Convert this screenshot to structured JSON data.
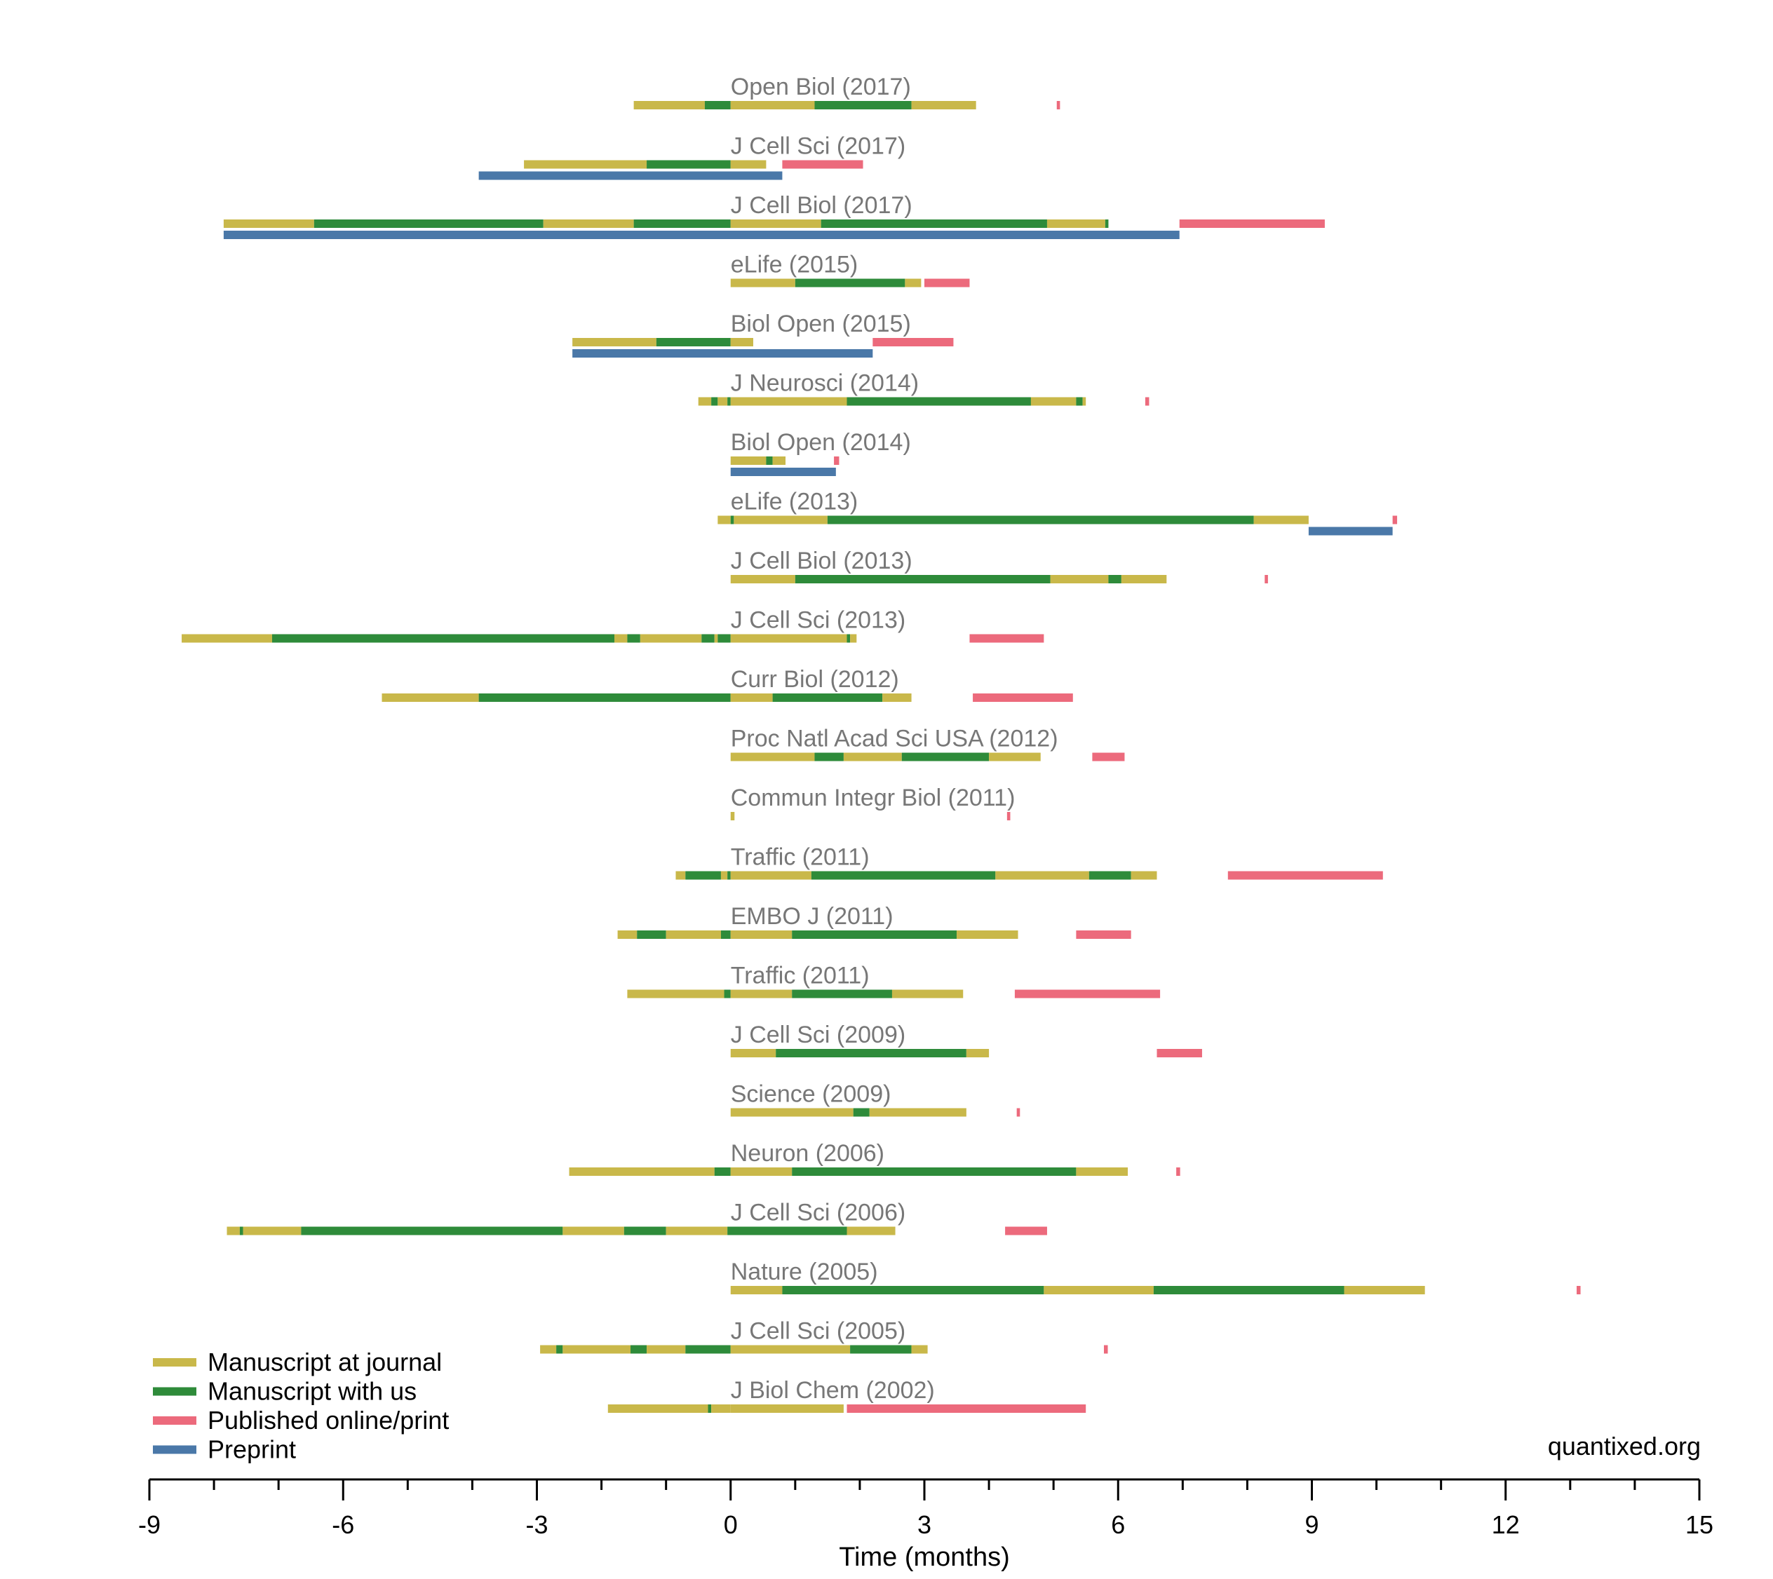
{
  "chart_data": {
    "type": "timeline",
    "xlabel": "Time (months)",
    "xlim": [
      -9,
      15
    ],
    "x_ticks": [
      -9,
      -6,
      -3,
      0,
      3,
      6,
      9,
      12,
      15
    ],
    "x_tick_labels": [
      "-9",
      "-6",
      "-3",
      "0",
      "3",
      "6",
      "9",
      "12",
      "15"
    ],
    "minor_tick_step": 1,
    "grid": false,
    "legend_position": "bottom-left",
    "watermark": "quantixed.org",
    "colors": {
      "journal": "#c9b84a",
      "us": "#2e8b3a",
      "published": "#ec6a7c",
      "preprint": "#4a78a8"
    },
    "legend": [
      {
        "key": "journal",
        "label": "Manuscript at journal"
      },
      {
        "key": "us",
        "label": "Manuscript with us"
      },
      {
        "key": "published",
        "label": "Published online/print"
      },
      {
        "key": "preprint",
        "label": "Preprint"
      }
    ],
    "papers": [
      {
        "label": "Open Biol (2017)",
        "timeline": [
          [
            -1.5,
            -0.4,
            "journal"
          ],
          [
            -0.4,
            0,
            "us"
          ],
          [
            0,
            1.3,
            "journal"
          ],
          [
            1.3,
            2.8,
            "us"
          ],
          [
            2.8,
            3.8,
            "journal"
          ],
          [
            5.05,
            5.1,
            "published"
          ]
        ],
        "preprint": []
      },
      {
        "label": "J Cell Sci (2017)",
        "timeline": [
          [
            -3.2,
            -1.3,
            "journal"
          ],
          [
            -1.3,
            0,
            "us"
          ],
          [
            0,
            0.55,
            "journal"
          ],
          [
            0.8,
            2.05,
            "published"
          ]
        ],
        "preprint": [
          [
            -3.9,
            0.8
          ]
        ]
      },
      {
        "label": "J Cell Biol (2017)",
        "timeline": [
          [
            -7.85,
            -6.45,
            "journal"
          ],
          [
            -6.45,
            -2.9,
            "us"
          ],
          [
            -2.9,
            -1.5,
            "journal"
          ],
          [
            -1.5,
            0,
            "us"
          ],
          [
            0,
            1.4,
            "journal"
          ],
          [
            1.4,
            4.9,
            "us"
          ],
          [
            4.9,
            5.8,
            "journal"
          ],
          [
            5.8,
            5.85,
            "us"
          ],
          [
            6.95,
            9.2,
            "published"
          ]
        ],
        "preprint": [
          [
            -7.85,
            6.95
          ]
        ]
      },
      {
        "label": "eLife (2015)",
        "timeline": [
          [
            0,
            1.0,
            "journal"
          ],
          [
            1.0,
            2.7,
            "us"
          ],
          [
            2.7,
            2.95,
            "journal"
          ],
          [
            3.0,
            3.7,
            "published"
          ]
        ],
        "preprint": []
      },
      {
        "label": "Biol Open (2015)",
        "timeline": [
          [
            -2.45,
            -1.15,
            "journal"
          ],
          [
            -1.15,
            0,
            "us"
          ],
          [
            0,
            0.35,
            "journal"
          ],
          [
            2.2,
            3.45,
            "published"
          ]
        ],
        "preprint": [
          [
            -2.45,
            2.2
          ]
        ]
      },
      {
        "label": "J Neurosci (2014)",
        "timeline": [
          [
            -0.5,
            -0.3,
            "journal"
          ],
          [
            -0.3,
            -0.2,
            "us"
          ],
          [
            -0.2,
            -0.05,
            "journal"
          ],
          [
            -0.05,
            0,
            "us"
          ],
          [
            0,
            1.8,
            "journal"
          ],
          [
            1.8,
            4.65,
            "us"
          ],
          [
            4.65,
            5.35,
            "journal"
          ],
          [
            5.35,
            5.45,
            "us"
          ],
          [
            5.45,
            5.5,
            "journal"
          ],
          [
            6.42,
            6.48,
            "published"
          ]
        ],
        "preprint": []
      },
      {
        "label": "Biol Open (2014)",
        "timeline": [
          [
            0,
            0.55,
            "journal"
          ],
          [
            0.55,
            0.65,
            "us"
          ],
          [
            0.65,
            0.85,
            "journal"
          ],
          [
            1.6,
            1.68,
            "published"
          ]
        ],
        "preprint": [
          [
            0,
            1.63
          ]
        ]
      },
      {
        "label": "eLife (2013)",
        "timeline": [
          [
            -0.2,
            0,
            "journal"
          ],
          [
            0,
            0.05,
            "us"
          ],
          [
            0.05,
            1.5,
            "journal"
          ],
          [
            1.5,
            8.1,
            "us"
          ],
          [
            8.1,
            8.95,
            "journal"
          ],
          [
            10.25,
            10.32,
            "published"
          ]
        ],
        "preprint": [
          [
            8.95,
            10.25
          ]
        ]
      },
      {
        "label": "J Cell Biol (2013)",
        "timeline": [
          [
            0,
            1.0,
            "journal"
          ],
          [
            1.0,
            4.95,
            "us"
          ],
          [
            4.95,
            5.85,
            "journal"
          ],
          [
            5.85,
            6.05,
            "us"
          ],
          [
            6.05,
            6.75,
            "journal"
          ],
          [
            8.27,
            8.32,
            "published"
          ]
        ],
        "preprint": []
      },
      {
        "label": "J Cell Sci (2013)",
        "timeline": [
          [
            -8.5,
            -7.1,
            "journal"
          ],
          [
            -7.1,
            -1.8,
            "us"
          ],
          [
            -1.8,
            -1.6,
            "journal"
          ],
          [
            -1.6,
            -1.4,
            "us"
          ],
          [
            -1.4,
            -0.45,
            "journal"
          ],
          [
            -0.45,
            -0.25,
            "us"
          ],
          [
            -0.25,
            -0.2,
            "journal"
          ],
          [
            -0.2,
            0,
            "us"
          ],
          [
            0,
            1.8,
            "journal"
          ],
          [
            1.8,
            1.85,
            "us"
          ],
          [
            1.85,
            1.95,
            "journal"
          ],
          [
            3.7,
            4.85,
            "published"
          ]
        ],
        "preprint": []
      },
      {
        "label": "Curr Biol (2012)",
        "timeline": [
          [
            -5.4,
            -3.9,
            "journal"
          ],
          [
            -3.9,
            0,
            "us"
          ],
          [
            0,
            0.65,
            "journal"
          ],
          [
            0.65,
            2.35,
            "us"
          ],
          [
            2.35,
            2.8,
            "journal"
          ],
          [
            3.75,
            5.3,
            "published"
          ]
        ],
        "preprint": []
      },
      {
        "label": "Proc Natl Acad Sci USA (2012)",
        "timeline": [
          [
            0,
            1.3,
            "journal"
          ],
          [
            1.3,
            1.75,
            "us"
          ],
          [
            1.75,
            2.65,
            "journal"
          ],
          [
            2.65,
            4.0,
            "us"
          ],
          [
            4.0,
            4.8,
            "journal"
          ],
          [
            5.6,
            6.1,
            "published"
          ]
        ],
        "preprint": []
      },
      {
        "label": "Commun Integr Biol (2011)",
        "timeline": [
          [
            0,
            0.06,
            "journal"
          ],
          [
            4.28,
            4.33,
            "published"
          ]
        ],
        "preprint": []
      },
      {
        "label": "Traffic (2011)",
        "timeline": [
          [
            -0.85,
            -0.7,
            "journal"
          ],
          [
            -0.7,
            -0.15,
            "us"
          ],
          [
            -0.15,
            -0.05,
            "journal"
          ],
          [
            -0.05,
            0,
            "us"
          ],
          [
            0,
            1.25,
            "journal"
          ],
          [
            1.25,
            4.1,
            "us"
          ],
          [
            4.1,
            5.55,
            "journal"
          ],
          [
            5.55,
            6.2,
            "us"
          ],
          [
            6.2,
            6.6,
            "journal"
          ],
          [
            7.7,
            10.1,
            "published"
          ]
        ],
        "preprint": []
      },
      {
        "label": "EMBO J (2011)",
        "timeline": [
          [
            -1.75,
            -1.45,
            "journal"
          ],
          [
            -1.45,
            -1.0,
            "us"
          ],
          [
            -1.0,
            -0.15,
            "journal"
          ],
          [
            -0.15,
            0,
            "us"
          ],
          [
            0,
            0.95,
            "journal"
          ],
          [
            0.95,
            3.5,
            "us"
          ],
          [
            3.5,
            4.45,
            "journal"
          ],
          [
            5.35,
            6.2,
            "published"
          ]
        ],
        "preprint": []
      },
      {
        "label": "Traffic (2011)",
        "timeline": [
          [
            -1.6,
            -0.1,
            "journal"
          ],
          [
            -0.1,
            0,
            "us"
          ],
          [
            0,
            0.95,
            "journal"
          ],
          [
            0.95,
            2.5,
            "us"
          ],
          [
            2.5,
            3.6,
            "journal"
          ],
          [
            4.4,
            6.65,
            "published"
          ]
        ],
        "preprint": []
      },
      {
        "label": "J Cell Sci (2009)",
        "timeline": [
          [
            0,
            0.7,
            "journal"
          ],
          [
            0.7,
            3.65,
            "us"
          ],
          [
            3.65,
            4.0,
            "journal"
          ],
          [
            6.6,
            7.3,
            "published"
          ]
        ],
        "preprint": []
      },
      {
        "label": "Science (2009)",
        "timeline": [
          [
            0,
            1.9,
            "journal"
          ],
          [
            1.9,
            2.15,
            "us"
          ],
          [
            2.15,
            3.65,
            "journal"
          ],
          [
            4.43,
            4.48,
            "published"
          ]
        ],
        "preprint": []
      },
      {
        "label": "Neuron (2006)",
        "timeline": [
          [
            -2.5,
            -0.25,
            "journal"
          ],
          [
            -0.25,
            0,
            "us"
          ],
          [
            0,
            0.95,
            "journal"
          ],
          [
            0.95,
            5.35,
            "us"
          ],
          [
            5.35,
            6.15,
            "journal"
          ],
          [
            6.9,
            6.96,
            "published"
          ]
        ],
        "preprint": []
      },
      {
        "label": "J Cell Sci (2006)",
        "timeline": [
          [
            -7.8,
            -7.6,
            "journal"
          ],
          [
            -7.6,
            -7.55,
            "us"
          ],
          [
            -7.55,
            -6.65,
            "journal"
          ],
          [
            -6.65,
            -2.6,
            "us"
          ],
          [
            -2.6,
            -1.65,
            "journal"
          ],
          [
            -1.65,
            -1.0,
            "us"
          ],
          [
            -1.0,
            -0.05,
            "journal"
          ],
          [
            -0.05,
            1.8,
            "us"
          ],
          [
            1.8,
            2.55,
            "journal"
          ],
          [
            4.25,
            4.9,
            "published"
          ]
        ],
        "preprint": []
      },
      {
        "label": "Nature (2005)",
        "timeline": [
          [
            0,
            0.8,
            "journal"
          ],
          [
            0.8,
            4.85,
            "us"
          ],
          [
            4.85,
            6.55,
            "journal"
          ],
          [
            6.55,
            9.5,
            "us"
          ],
          [
            9.5,
            10.75,
            "journal"
          ],
          [
            13.1,
            13.16,
            "published"
          ]
        ],
        "preprint": []
      },
      {
        "label": "J Cell Sci (2005)",
        "timeline": [
          [
            -2.95,
            -2.7,
            "journal"
          ],
          [
            -2.7,
            -2.6,
            "us"
          ],
          [
            -2.6,
            -1.55,
            "journal"
          ],
          [
            -1.55,
            -1.3,
            "us"
          ],
          [
            -1.3,
            -0.7,
            "journal"
          ],
          [
            -0.7,
            0,
            "us"
          ],
          [
            0,
            1.85,
            "journal"
          ],
          [
            1.85,
            2.8,
            "us"
          ],
          [
            2.8,
            3.05,
            "journal"
          ],
          [
            5.78,
            5.84,
            "published"
          ]
        ],
        "preprint": []
      },
      {
        "label": "J Biol Chem (2002)",
        "timeline": [
          [
            -1.9,
            -0.35,
            "journal"
          ],
          [
            -0.35,
            -0.3,
            "us"
          ],
          [
            -0.3,
            0,
            "journal"
          ],
          [
            0,
            1.75,
            "journal"
          ],
          [
            1.8,
            5.5,
            "published"
          ]
        ],
        "preprint": []
      }
    ]
  }
}
